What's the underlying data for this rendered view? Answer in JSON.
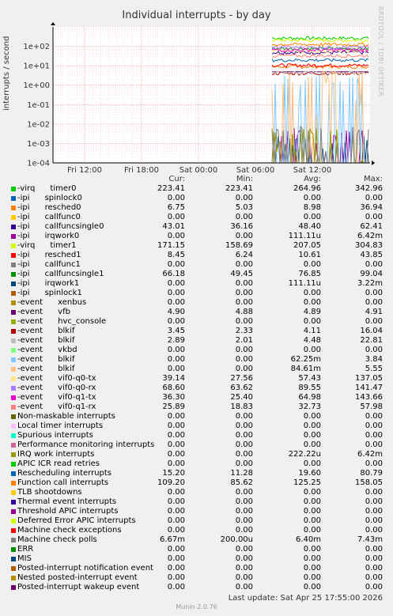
{
  "chart_data": {
    "type": "line",
    "title": "Individual interrupts - by day",
    "ylabel": "interrupts / second",
    "yscale": "log",
    "ylim": [
      0.0001,
      1000
    ],
    "y_ticks": [
      "1e+02",
      "1e+01",
      "1e+00",
      "1e-01",
      "1e-02",
      "1e-03",
      "1e-04"
    ],
    "x_ticks": [
      "Fri 12:00",
      "Fri 18:00",
      "Sat 00:00",
      "Sat 06:00",
      "Sat 12:00"
    ],
    "grid": true,
    "legend_placement": "bottom"
  },
  "legend": {
    "headers": {
      "cur": "Cur:",
      "min": "Min:",
      "avg": "Avg:",
      "max": "Max:"
    },
    "rows": [
      {
        "label": "-virq      timer0",
        "cur": "223.41",
        "min": "223.41",
        "avg": "264.96",
        "max": "342.96",
        "color": "#00cc00"
      },
      {
        "label": "-ipi      spinlock0",
        "cur": "0.00",
        "min": "0.00",
        "avg": "0.00",
        "max": "0.00",
        "color": "#0066b3"
      },
      {
        "label": "-ipi      resched0",
        "cur": "6.75",
        "min": "5.03",
        "avg": "8.98",
        "max": "36.94",
        "color": "#ff8000"
      },
      {
        "label": "-ipi      callfunc0",
        "cur": "0.00",
        "min": "0.00",
        "avg": "0.00",
        "max": "0.00",
        "color": "#ffcc00"
      },
      {
        "label": "-ipi      callfuncsingle0",
        "cur": "43.01",
        "min": "36.16",
        "avg": "48.40",
        "max": "62.41",
        "color": "#330099"
      },
      {
        "label": "-ipi      irqwork0",
        "cur": "0.00",
        "min": "0.00",
        "avg": "111.11u",
        "max": "6.42m",
        "color": "#990099"
      },
      {
        "label": "-virq      timer1",
        "cur": "171.15",
        "min": "158.69",
        "avg": "207.05",
        "max": "304.83",
        "color": "#ccff00"
      },
      {
        "label": "-ipi      resched1",
        "cur": "8.45",
        "min": "6.24",
        "avg": "10.61",
        "max": "43.85",
        "color": "#ff0000"
      },
      {
        "label": "-ipi      callfunc1",
        "cur": "0.00",
        "min": "0.00",
        "avg": "0.00",
        "max": "0.00",
        "color": "#808080"
      },
      {
        "label": "-ipi      callfuncsingle1",
        "cur": "66.18",
        "min": "49.45",
        "avg": "76.85",
        "max": "99.04",
        "color": "#008f00"
      },
      {
        "label": "-ipi      irqwork1",
        "cur": "0.00",
        "min": "0.00",
        "avg": "111.11u",
        "max": "3.22m",
        "color": "#00487d"
      },
      {
        "label": "-ipi      spinlock1",
        "cur": "0.00",
        "min": "0.00",
        "avg": "0.00",
        "max": "0.00",
        "color": "#b35a00"
      },
      {
        "label": "-event      xenbus",
        "cur": "0.00",
        "min": "0.00",
        "avg": "0.00",
        "max": "0.00",
        "color": "#b38f00"
      },
      {
        "label": "-event      vfb",
        "cur": "4.90",
        "min": "4.88",
        "avg": "4.89",
        "max": "4.91",
        "color": "#6b006b"
      },
      {
        "label": "-event      hvc_console",
        "cur": "0.00",
        "min": "0.00",
        "avg": "0.00",
        "max": "0.00",
        "color": "#8fb300"
      },
      {
        "label": "-event      blkif",
        "cur": "3.45",
        "min": "2.33",
        "avg": "4.11",
        "max": "16.04",
        "color": "#b30000"
      },
      {
        "label": "-event      blkif",
        "cur": "2.89",
        "min": "2.01",
        "avg": "4.48",
        "max": "22.81",
        "color": "#bebebe"
      },
      {
        "label": "-event      vkbd",
        "cur": "0.00",
        "min": "0.00",
        "avg": "0.00",
        "max": "0.00",
        "color": "#80ff80"
      },
      {
        "label": "-event      blkif",
        "cur": "0.00",
        "min": "0.00",
        "avg": "62.25m",
        "max": "3.84",
        "color": "#80c9ff"
      },
      {
        "label": "-event      blkif",
        "cur": "0.00",
        "min": "0.00",
        "avg": "84.61m",
        "max": "5.55",
        "color": "#ffc080"
      },
      {
        "label": "-event      vif0-q0-tx",
        "cur": "39.14",
        "min": "27.56",
        "avg": "57.43",
        "max": "137.05",
        "color": "#ffe680"
      },
      {
        "label": "-event      vif0-q0-rx",
        "cur": "68.60",
        "min": "63.62",
        "avg": "89.55",
        "max": "141.47",
        "color": "#aa80ff"
      },
      {
        "label": "-event      vif0-q1-tx",
        "cur": "36.30",
        "min": "25.40",
        "avg": "64.98",
        "max": "143.66",
        "color": "#ee00cc"
      },
      {
        "label": "-event      vif0-q1-rx",
        "cur": "25.89",
        "min": "18.83",
        "avg": "32.73",
        "max": "57.98",
        "color": "#ff8080"
      },
      {
        "label": "Non-maskable interrupts",
        "cur": "0.00",
        "min": "0.00",
        "avg": "0.00",
        "max": "0.00",
        "color": "#666600"
      },
      {
        "label": "Local timer interrupts",
        "cur": "0.00",
        "min": "0.00",
        "avg": "0.00",
        "max": "0.00",
        "color": "#ffbfff"
      },
      {
        "label": "Spurious interrupts",
        "cur": "0.00",
        "min": "0.00",
        "avg": "0.00",
        "max": "0.00",
        "color": "#00ffcc"
      },
      {
        "label": "Performance monitoring interrupts",
        "cur": "0.00",
        "min": "0.00",
        "avg": "0.00",
        "max": "0.00",
        "color": "#cc6699"
      },
      {
        "label": "IRQ work interrupts",
        "cur": "0.00",
        "min": "0.00",
        "avg": "222.22u",
        "max": "6.42m",
        "color": "#999900"
      },
      {
        "label": "APIC ICR read retries",
        "cur": "0.00",
        "min": "0.00",
        "avg": "0.00",
        "max": "0.00",
        "color": "#00cc00"
      },
      {
        "label": "Rescheduling interrupts",
        "cur": "15.20",
        "min": "11.28",
        "avg": "19.60",
        "max": "80.79",
        "color": "#0066b3"
      },
      {
        "label": "Function call interrupts",
        "cur": "109.20",
        "min": "85.62",
        "avg": "125.25",
        "max": "158.05",
        "color": "#ff8000"
      },
      {
        "label": "TLB shootdowns",
        "cur": "0.00",
        "min": "0.00",
        "avg": "0.00",
        "max": "0.00",
        "color": "#ffcc00"
      },
      {
        "label": "Thermal event interrupts",
        "cur": "0.00",
        "min": "0.00",
        "avg": "0.00",
        "max": "0.00",
        "color": "#330099"
      },
      {
        "label": "Threshold APIC interrupts",
        "cur": "0.00",
        "min": "0.00",
        "avg": "0.00",
        "max": "0.00",
        "color": "#990099"
      },
      {
        "label": "Deferred Error APIC interrupts",
        "cur": "0.00",
        "min": "0.00",
        "avg": "0.00",
        "max": "0.00",
        "color": "#ccff00"
      },
      {
        "label": "Machine check exceptions",
        "cur": "0.00",
        "min": "0.00",
        "avg": "0.00",
        "max": "0.00",
        "color": "#ff0000"
      },
      {
        "label": "Machine check polls",
        "cur": "6.67m",
        "min": "200.00u",
        "avg": "6.40m",
        "max": "7.43m",
        "color": "#808080"
      },
      {
        "label": "ERR",
        "cur": "0.00",
        "min": "0.00",
        "avg": "0.00",
        "max": "0.00",
        "color": "#008f00"
      },
      {
        "label": "MIS",
        "cur": "0.00",
        "min": "0.00",
        "avg": "0.00",
        "max": "0.00",
        "color": "#00487d"
      },
      {
        "label": "Posted-interrupt notification event",
        "cur": "0.00",
        "min": "0.00",
        "avg": "0.00",
        "max": "0.00",
        "color": "#b35a00"
      },
      {
        "label": "Nested posted-interrupt event",
        "cur": "0.00",
        "min": "0.00",
        "avg": "0.00",
        "max": "0.00",
        "color": "#b38f00"
      },
      {
        "label": "Posted-interrupt wakeup event",
        "cur": "0.00",
        "min": "0.00",
        "avg": "0.00",
        "max": "0.00",
        "color": "#6b006b"
      }
    ]
  },
  "last_update": "Last update: Sat Apr 25 17:55:00 2026",
  "footer": "Munin 2.0.76",
  "side_label": "RRDTOOL / TOBI OETIKER"
}
